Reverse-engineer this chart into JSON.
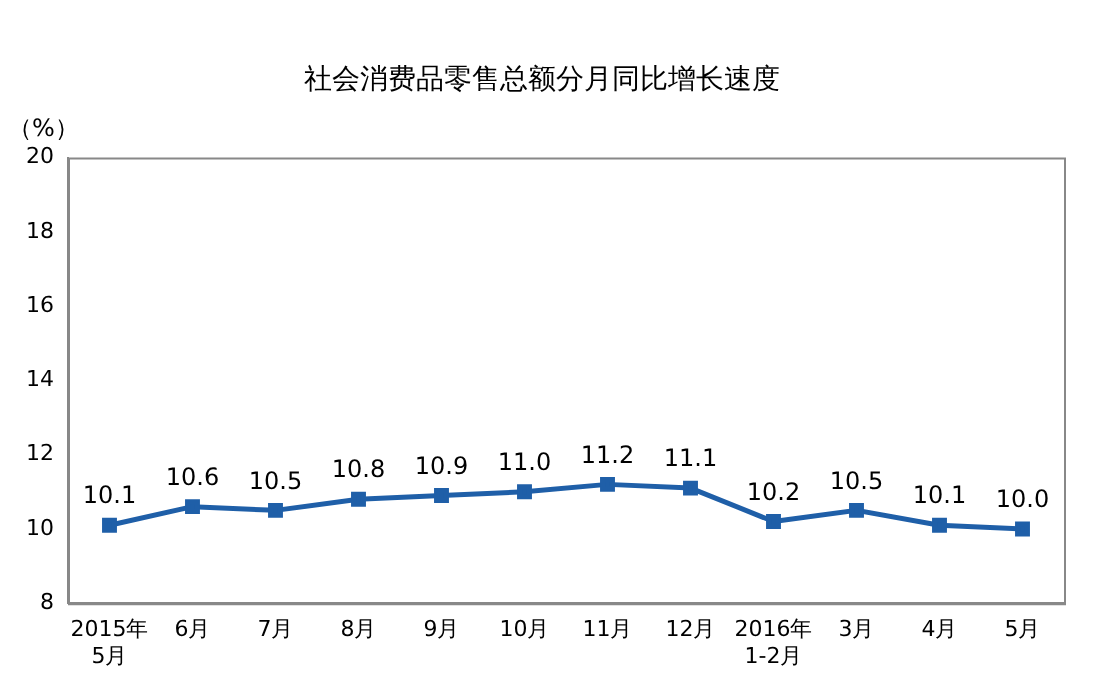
{
  "chart_data": {
    "type": "line",
    "title": "社会消费品零售总额分月同比增长速度",
    "ylabel": "（%）",
    "categories": [
      "2015年\n5月",
      "6月",
      "7月",
      "8月",
      "9月",
      "10月",
      "11月",
      "12月",
      "2016年\n1-2月",
      "3月",
      "4月",
      "5月"
    ],
    "series": [
      {
        "color": "#1f5fa8",
        "values": [
          10.1,
          10.6,
          10.5,
          10.8,
          10.9,
          11.0,
          11.2,
          11.1,
          10.2,
          10.5,
          10.1,
          10.0
        ],
        "value_labels": [
          "10.1",
          "10.6",
          "10.5",
          "10.8",
          "10.9",
          "11.0",
          "11.2",
          "11.1",
          "10.2",
          "10.5",
          "10.1",
          "10.0"
        ]
      }
    ],
    "ylim": [
      8,
      20
    ],
    "yticks": [
      8,
      10,
      12,
      14,
      16,
      18,
      20
    ],
    "grid": false,
    "legend": false,
    "marker": "square",
    "line_style": "solid"
  }
}
